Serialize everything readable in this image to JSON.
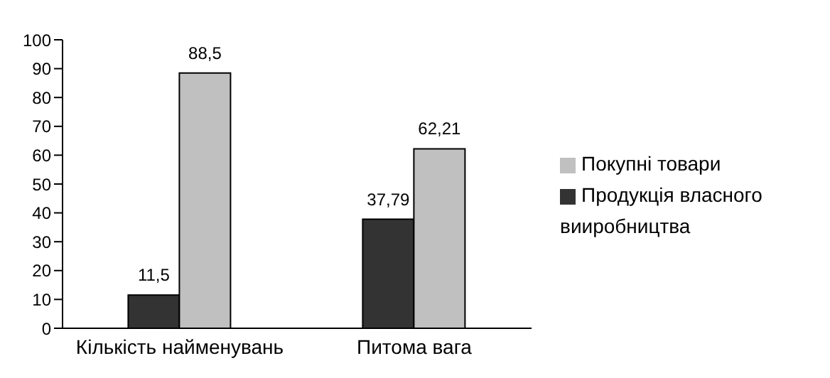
{
  "chart_data": {
    "type": "bar",
    "categories": [
      "Кількість найменувань",
      "Питома вага"
    ],
    "series": [
      {
        "name": "Продукція власного вииробництва",
        "color": "#333333",
        "values": [
          11.5,
          37.79
        ],
        "value_labels": [
          "11,5",
          "37,79"
        ]
      },
      {
        "name": "Покупні товари",
        "color": "#c0c0c0",
        "values": [
          88.5,
          62.21
        ],
        "value_labels": [
          "88,5",
          "62,21"
        ]
      }
    ],
    "ylim": [
      0,
      100
    ],
    "yticks": [
      0,
      10,
      20,
      30,
      40,
      50,
      60,
      70,
      80,
      90,
      100
    ],
    "grid": false,
    "legend": "right"
  }
}
